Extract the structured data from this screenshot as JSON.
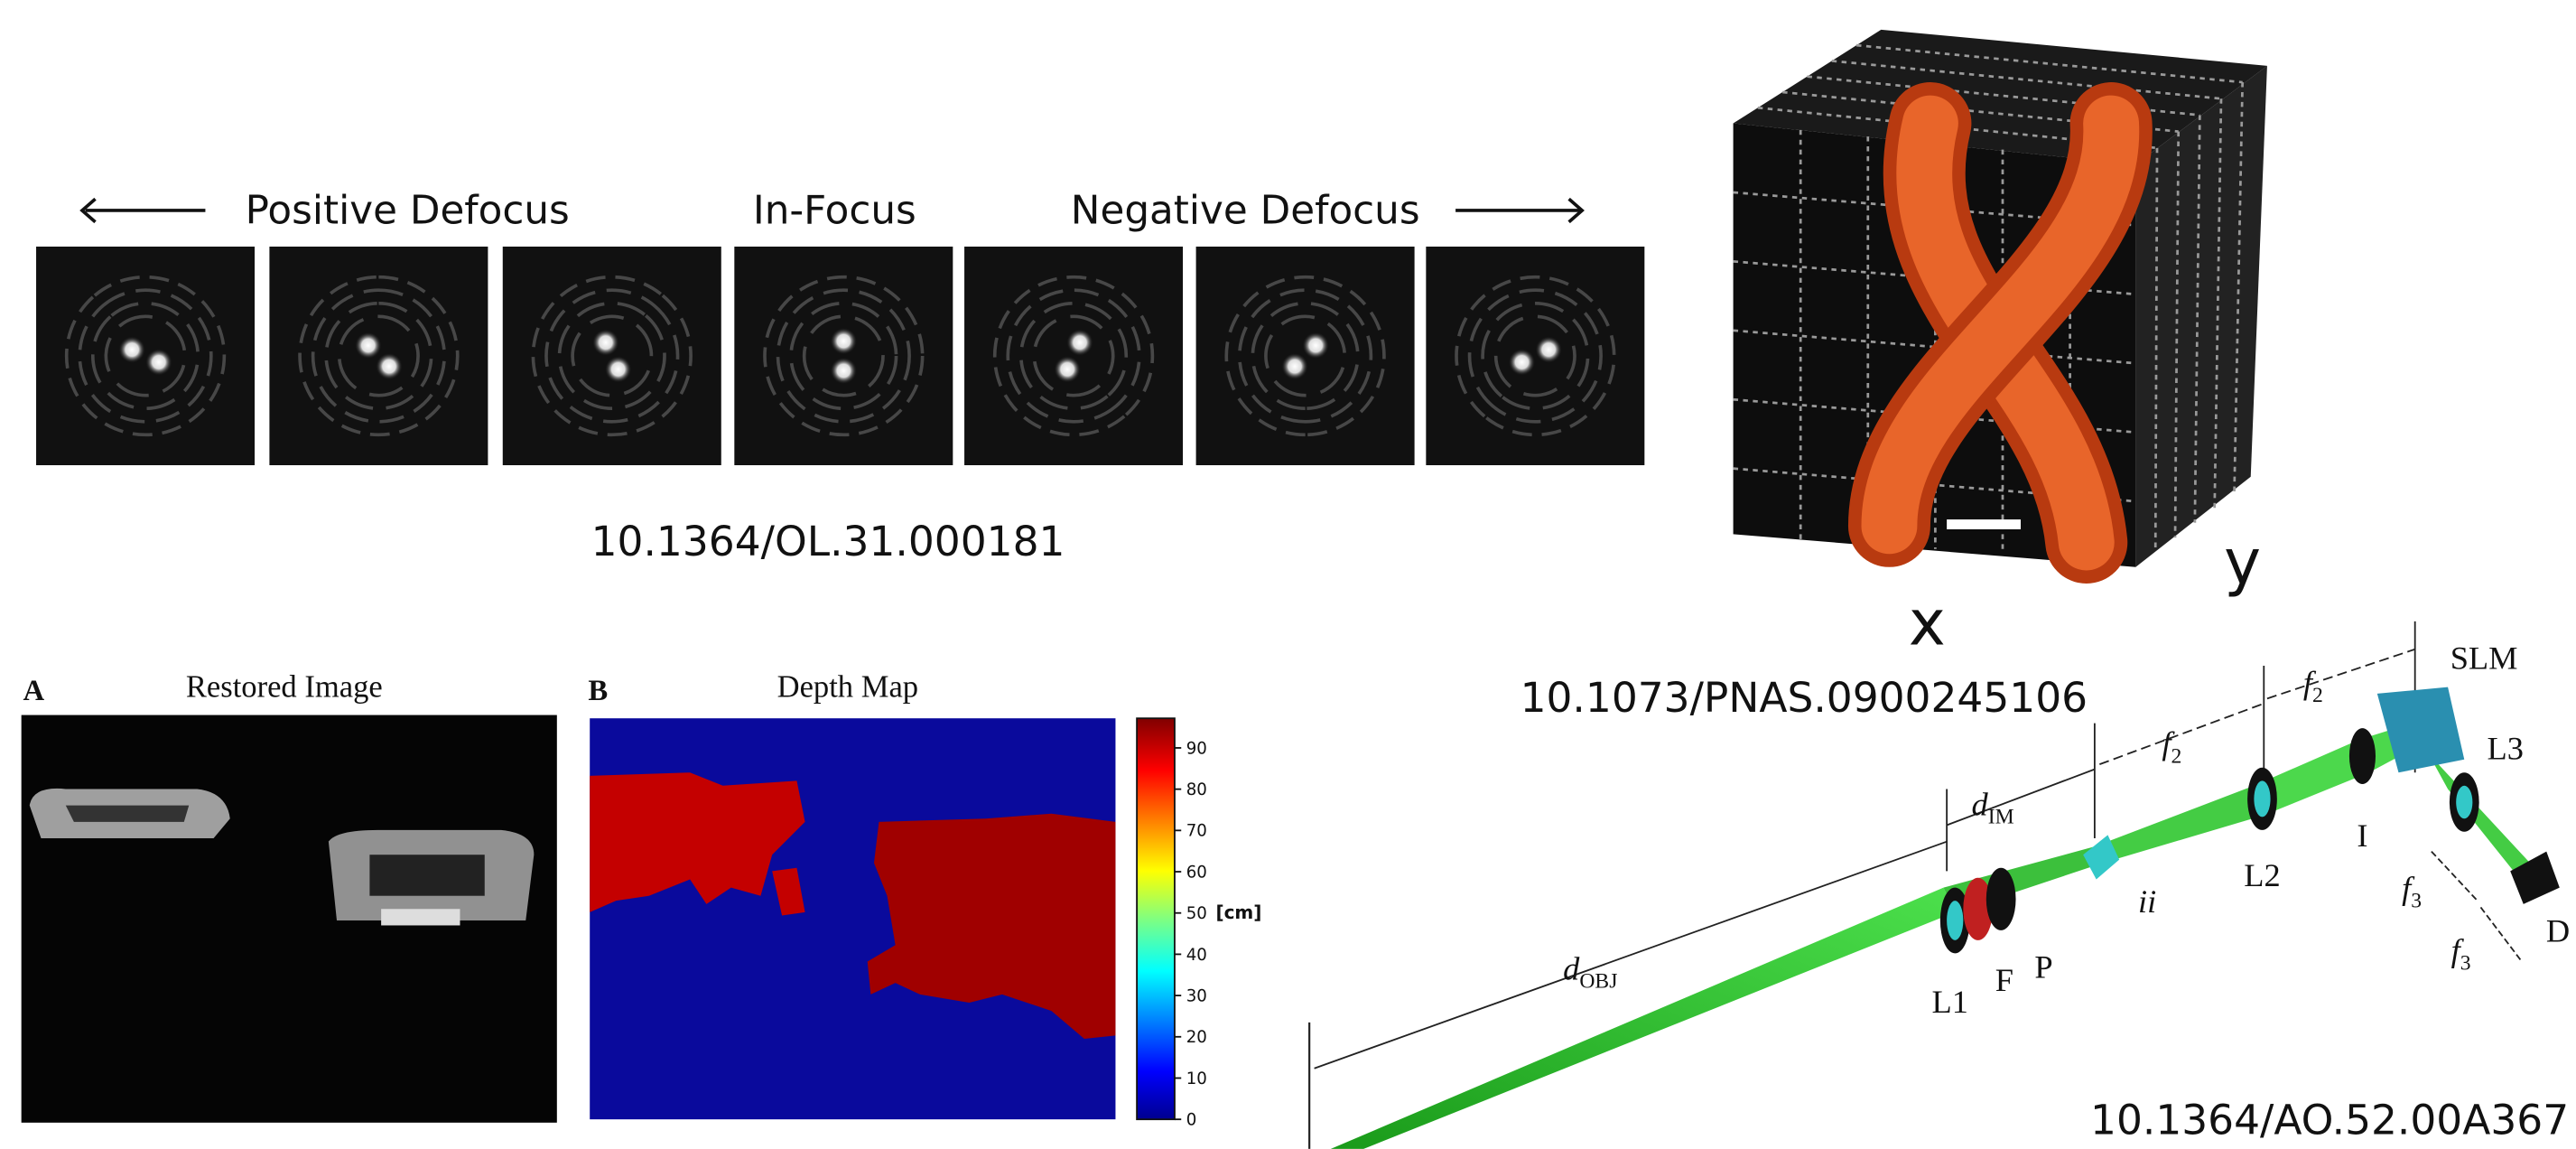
{
  "defocus_series": {
    "left_label": "Positive Defocus",
    "center_label": "In-Focus",
    "right_label": "Negative Defocus",
    "doi": "10.1364/OL.31.000181"
  },
  "helix_psf": {
    "x_label": "x",
    "y_label": "y",
    "doi": "10.1073/PNAS.0900245106"
  },
  "depth_imaging": {
    "panel_a": {
      "letter": "A",
      "title": "Restored Image"
    },
    "panel_b": {
      "letter": "B",
      "title": "Depth Map"
    },
    "colorbar_ticks": [
      0,
      10,
      20,
      30,
      40,
      50,
      60,
      70,
      80,
      90
    ],
    "colorbar_unit": "[cm]"
  },
  "optical_setup": {
    "labels": [
      {
        "text": "SLM"
      },
      {
        "text": "f",
        "sub": "2"
      },
      {
        "text": "f",
        "sub": "2"
      },
      {
        "text": "d",
        "sub": "IM"
      },
      {
        "text": "L3"
      },
      {
        "text": "I"
      },
      {
        "text": "L2"
      },
      {
        "text": "ii"
      },
      {
        "text": "f",
        "sub": "3"
      },
      {
        "text": "f",
        "sub": "3"
      },
      {
        "text": "D"
      },
      {
        "text": "L1"
      },
      {
        "text": "F"
      },
      {
        "text": "P"
      },
      {
        "text": "d",
        "sub": "OBJ"
      }
    ],
    "doi": "10.1364/AO.52.00A367"
  }
}
